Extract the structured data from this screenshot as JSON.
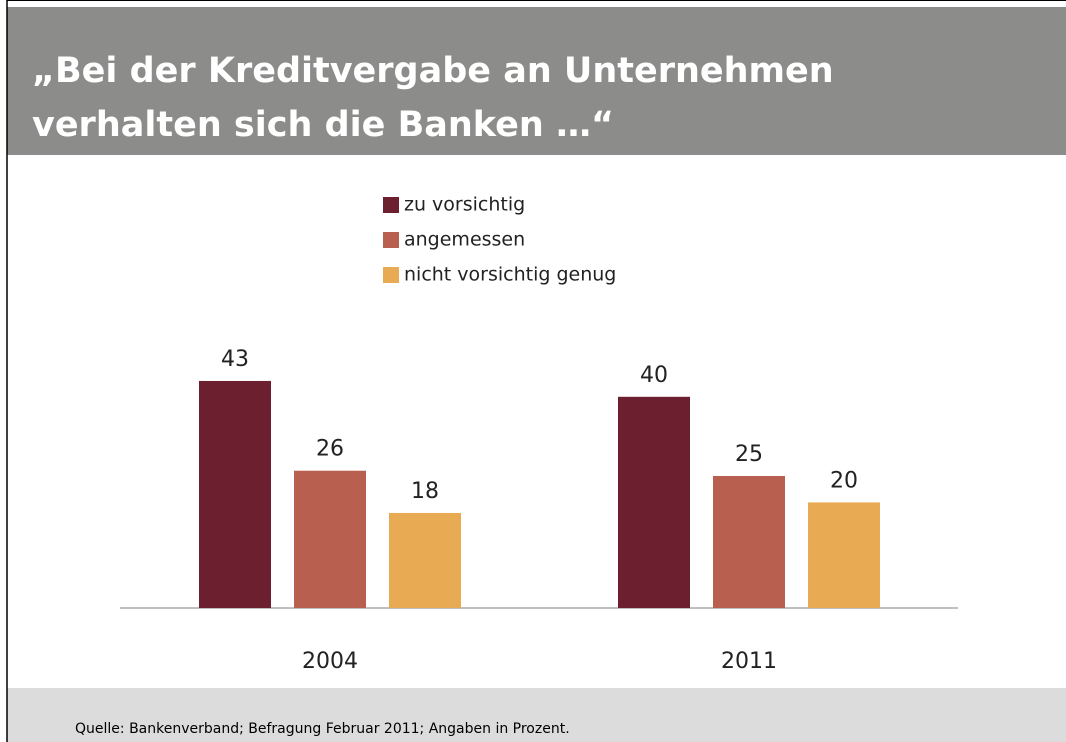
{
  "chart_data": {
    "type": "bar",
    "title_lines": [
      "„Bei der Kreditvergabe an Unternehmen",
      "verhalten sich die Banken …“"
    ],
    "categories": [
      "2004",
      "2011"
    ],
    "series": [
      {
        "name": "zu vorsichtig",
        "color": "#6b1f2f",
        "values": [
          43,
          40
        ]
      },
      {
        "name": "angemessen",
        "color": "#b85f50",
        "values": [
          26,
          25
        ]
      },
      {
        "name": "nicht vorsichtig genug",
        "color": "#e8aa52",
        "values": [
          18,
          20
        ]
      }
    ],
    "ylim": [
      0,
      50
    ],
    "source": "Quelle: Bankenverband; Befragung Februar 2011; Angaben in Prozent."
  }
}
